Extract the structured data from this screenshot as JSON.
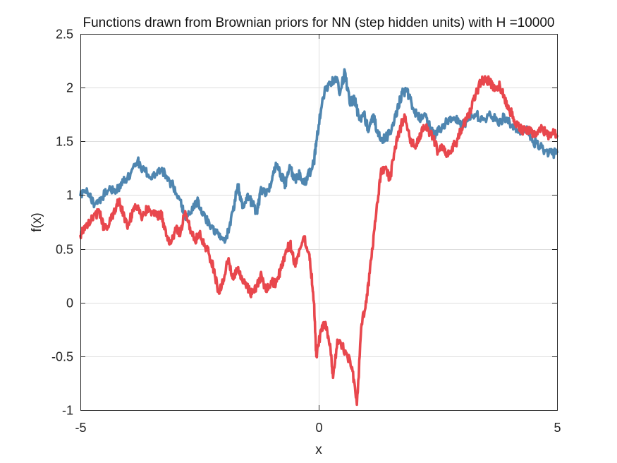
{
  "chart_data": {
    "type": "line",
    "title": "Functions drawn from Brownian priors for NN (step hidden units) with H =10000",
    "xlabel": "x",
    "ylabel": "f(x)",
    "xlim": [
      -5,
      5
    ],
    "ylim": [
      -1,
      2.5
    ],
    "xticks": [
      -5,
      0,
      5
    ],
    "xtick_labels": [
      "-5",
      "0",
      "5"
    ],
    "yticks": [
      -1,
      -0.5,
      0,
      0.5,
      1,
      1.5,
      2,
      2.5
    ],
    "ytick_labels": [
      "-1",
      "-0.5",
      "0",
      "0.5",
      "1",
      "1.5",
      "2",
      "2.5"
    ],
    "grid": true,
    "series": [
      {
        "color": "#4f86b0",
        "points": [
          [
            -5.0,
            1.0
          ],
          [
            -4.85,
            1.02
          ],
          [
            -4.7,
            0.92
          ],
          [
            -4.55,
            0.98
          ],
          [
            -4.4,
            1.05
          ],
          [
            -4.25,
            1.05
          ],
          [
            -4.1,
            1.12
          ],
          [
            -3.95,
            1.2
          ],
          [
            -3.8,
            1.32
          ],
          [
            -3.65,
            1.22
          ],
          [
            -3.5,
            1.15
          ],
          [
            -3.35,
            1.25
          ],
          [
            -3.2,
            1.18
          ],
          [
            -3.05,
            1.08
          ],
          [
            -2.9,
            0.95
          ],
          [
            -2.8,
            0.8
          ],
          [
            -2.7,
            0.82
          ],
          [
            -2.55,
            0.95
          ],
          [
            -2.45,
            0.82
          ],
          [
            -2.3,
            0.75
          ],
          [
            -2.15,
            0.65
          ],
          [
            -2.0,
            0.58
          ],
          [
            -1.9,
            0.65
          ],
          [
            -1.8,
            0.85
          ],
          [
            -1.7,
            1.1
          ],
          [
            -1.6,
            0.88
          ],
          [
            -1.5,
            1.0
          ],
          [
            -1.4,
            0.92
          ],
          [
            -1.3,
            0.85
          ],
          [
            -1.2,
            1.05
          ],
          [
            -1.1,
            1.0
          ],
          [
            -1.0,
            1.1
          ],
          [
            -0.9,
            1.3
          ],
          [
            -0.8,
            1.2
          ],
          [
            -0.7,
            1.1
          ],
          [
            -0.6,
            1.25
          ],
          [
            -0.5,
            1.15
          ],
          [
            -0.4,
            1.2
          ],
          [
            -0.3,
            1.1
          ],
          [
            -0.2,
            1.2
          ],
          [
            -0.1,
            1.3
          ],
          [
            -0.05,
            1.5
          ],
          [
            0.05,
            1.8
          ],
          [
            0.15,
            2.0
          ],
          [
            0.25,
            2.05
          ],
          [
            0.35,
            2.1
          ],
          [
            0.45,
            1.95
          ],
          [
            0.55,
            2.15
          ],
          [
            0.65,
            1.85
          ],
          [
            0.75,
            1.9
          ],
          [
            0.85,
            1.7
          ],
          [
            0.95,
            1.75
          ],
          [
            1.05,
            1.6
          ],
          [
            1.15,
            1.75
          ],
          [
            1.25,
            1.55
          ],
          [
            1.35,
            1.52
          ],
          [
            1.45,
            1.55
          ],
          [
            1.55,
            1.65
          ],
          [
            1.65,
            1.8
          ],
          [
            1.75,
            1.95
          ],
          [
            1.85,
            1.98
          ],
          [
            1.95,
            1.85
          ],
          [
            2.05,
            1.75
          ],
          [
            2.15,
            1.7
          ],
          [
            2.25,
            1.75
          ],
          [
            2.35,
            1.6
          ],
          [
            2.45,
            1.55
          ],
          [
            2.55,
            1.62
          ],
          [
            2.7,
            1.68
          ],
          [
            2.85,
            1.72
          ],
          [
            3.0,
            1.65
          ],
          [
            3.15,
            1.7
          ],
          [
            3.3,
            1.75
          ],
          [
            3.45,
            1.7
          ],
          [
            3.6,
            1.75
          ],
          [
            3.75,
            1.68
          ],
          [
            3.9,
            1.72
          ],
          [
            4.05,
            1.65
          ],
          [
            4.2,
            1.6
          ],
          [
            4.35,
            1.62
          ],
          [
            4.5,
            1.5
          ],
          [
            4.65,
            1.45
          ],
          [
            4.8,
            1.4
          ],
          [
            4.9,
            1.38
          ],
          [
            5.0,
            1.4
          ]
        ]
      },
      {
        "color": "#e8474d",
        "points": [
          [
            -5.0,
            0.62
          ],
          [
            -4.9,
            0.72
          ],
          [
            -4.75,
            0.78
          ],
          [
            -4.6,
            0.85
          ],
          [
            -4.5,
            0.68
          ],
          [
            -4.4,
            0.72
          ],
          [
            -4.3,
            0.85
          ],
          [
            -4.2,
            0.95
          ],
          [
            -4.1,
            0.82
          ],
          [
            -4.0,
            0.72
          ],
          [
            -3.9,
            0.85
          ],
          [
            -3.8,
            0.9
          ],
          [
            -3.7,
            0.8
          ],
          [
            -3.6,
            0.88
          ],
          [
            -3.5,
            0.85
          ],
          [
            -3.4,
            0.8
          ],
          [
            -3.3,
            0.82
          ],
          [
            -3.2,
            0.62
          ],
          [
            -3.1,
            0.55
          ],
          [
            -3.0,
            0.68
          ],
          [
            -2.9,
            0.65
          ],
          [
            -2.8,
            0.85
          ],
          [
            -2.7,
            0.7
          ],
          [
            -2.6,
            0.58
          ],
          [
            -2.5,
            0.65
          ],
          [
            -2.4,
            0.55
          ],
          [
            -2.3,
            0.45
          ],
          [
            -2.2,
            0.3
          ],
          [
            -2.1,
            0.1
          ],
          [
            -2.0,
            0.2
          ],
          [
            -1.9,
            0.4
          ],
          [
            -1.8,
            0.22
          ],
          [
            -1.7,
            0.3
          ],
          [
            -1.6,
            0.2
          ],
          [
            -1.5,
            0.15
          ],
          [
            -1.4,
            0.08
          ],
          [
            -1.3,
            0.15
          ],
          [
            -1.2,
            0.25
          ],
          [
            -1.1,
            0.1
          ],
          [
            -1.0,
            0.2
          ],
          [
            -0.9,
            0.18
          ],
          [
            -0.8,
            0.3
          ],
          [
            -0.7,
            0.45
          ],
          [
            -0.6,
            0.55
          ],
          [
            -0.5,
            0.35
          ],
          [
            -0.4,
            0.5
          ],
          [
            -0.3,
            0.6
          ],
          [
            -0.2,
            0.45
          ],
          [
            -0.15,
            0.25
          ],
          [
            -0.1,
            0.0
          ],
          [
            -0.05,
            -0.5
          ],
          [
            0.05,
            -0.25
          ],
          [
            0.15,
            -0.2
          ],
          [
            0.25,
            -0.45
          ],
          [
            0.3,
            -0.7
          ],
          [
            0.4,
            -0.35
          ],
          [
            0.5,
            -0.4
          ],
          [
            0.6,
            -0.5
          ],
          [
            0.7,
            -0.6
          ],
          [
            0.8,
            -0.95
          ],
          [
            0.9,
            -0.2
          ],
          [
            1.0,
            0.0
          ],
          [
            1.1,
            0.4
          ],
          [
            1.2,
            0.8
          ],
          [
            1.3,
            1.2
          ],
          [
            1.4,
            1.25
          ],
          [
            1.5,
            1.15
          ],
          [
            1.6,
            1.45
          ],
          [
            1.7,
            1.6
          ],
          [
            1.8,
            1.75
          ],
          [
            1.9,
            1.55
          ],
          [
            2.0,
            1.45
          ],
          [
            2.1,
            1.5
          ],
          [
            2.2,
            1.65
          ],
          [
            2.3,
            1.6
          ],
          [
            2.4,
            1.55
          ],
          [
            2.5,
            1.4
          ],
          [
            2.6,
            1.45
          ],
          [
            2.7,
            1.38
          ],
          [
            2.8,
            1.45
          ],
          [
            2.9,
            1.5
          ],
          [
            3.0,
            1.62
          ],
          [
            3.1,
            1.7
          ],
          [
            3.2,
            1.8
          ],
          [
            3.3,
            1.95
          ],
          [
            3.4,
            2.05
          ],
          [
            3.5,
            2.08
          ],
          [
            3.6,
            2.05
          ],
          [
            3.7,
            1.98
          ],
          [
            3.8,
            2.02
          ],
          [
            3.9,
            1.9
          ],
          [
            4.0,
            1.8
          ],
          [
            4.1,
            1.7
          ],
          [
            4.2,
            1.62
          ],
          [
            4.3,
            1.6
          ],
          [
            4.4,
            1.62
          ],
          [
            4.5,
            1.55
          ],
          [
            4.6,
            1.6
          ],
          [
            4.7,
            1.62
          ],
          [
            4.8,
            1.55
          ],
          [
            4.9,
            1.58
          ],
          [
            5.0,
            1.55
          ]
        ]
      }
    ]
  }
}
